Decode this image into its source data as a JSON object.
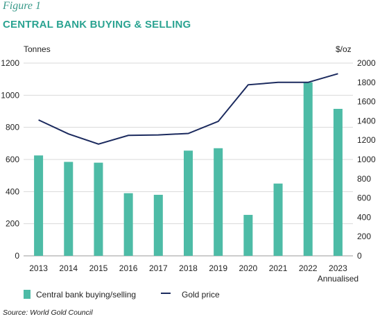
{
  "figure_label": "Figure 1",
  "title": "CENTRAL BANK BUYING & SELLING",
  "source": "Source: World Gold Council",
  "colors": {
    "bar": "#4dbba6",
    "line": "#1b2a5e",
    "title": "#2aa391",
    "grid": "#d9d9d9"
  },
  "chart_data": {
    "type": "bar",
    "categories": [
      "2013",
      "2014",
      "2015",
      "2016",
      "2017",
      "2018",
      "2019",
      "2020",
      "2021",
      "2022",
      "2023"
    ],
    "category_sublabels": {
      "2023": "Annualised"
    },
    "series": [
      {
        "name": "Central bank buying/selling",
        "type": "bar",
        "axis": "left",
        "values": [
          625,
          585,
          580,
          390,
          380,
          655,
          670,
          255,
          450,
          1080,
          915
        ]
      },
      {
        "name": "Gold price",
        "type": "line",
        "axis": "right",
        "values": [
          1410,
          1265,
          1160,
          1250,
          1255,
          1270,
          1395,
          1775,
          1800,
          1800,
          1890
        ]
      }
    ],
    "left_axis": {
      "label": "Tonnes",
      "ylim": [
        0,
        1200
      ],
      "ticks": [
        0,
        200,
        400,
        600,
        800,
        1000,
        1200
      ]
    },
    "right_axis": {
      "label": "$/oz",
      "ylim": [
        0,
        2000
      ],
      "ticks": [
        0,
        200,
        400,
        600,
        800,
        1000,
        1200,
        1400,
        1600,
        1800,
        2000
      ]
    },
    "grid": true,
    "legend": "bottom"
  }
}
